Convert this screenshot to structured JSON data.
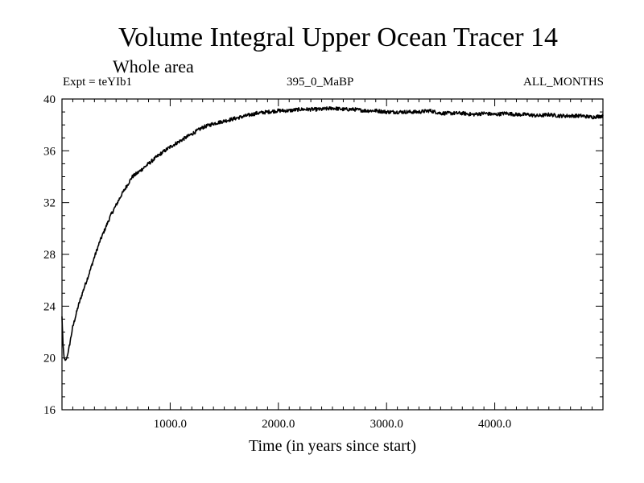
{
  "chart_data": {
    "type": "line",
    "title": "Volume Integral Upper Ocean Tracer 14",
    "subtitle": "Whole area",
    "experiment": "Expt = teYIb1",
    "period": "395_0_MaBP",
    "months": "ALL_MONTHS",
    "xlabel": "Time (in years since start)",
    "ylabel": "",
    "xlim": [
      0,
      5000
    ],
    "ylim": [
      16,
      40
    ],
    "x_ticks": [
      1000,
      2000,
      3000,
      4000
    ],
    "x_tick_labels": [
      "1000.0",
      "2000.0",
      "3000.0",
      "4000.0"
    ],
    "y_ticks": [
      16,
      20,
      24,
      28,
      32,
      36,
      40
    ],
    "y_tick_labels": [
      "16",
      "20",
      "24",
      "28",
      "32",
      "36",
      "40"
    ],
    "grid": false,
    "series": [
      {
        "name": "Tracer 14",
        "x": [
          0,
          10,
          20,
          30,
          40,
          60,
          80,
          100,
          150,
          200,
          250,
          300,
          350,
          400,
          450,
          500,
          550,
          600,
          650,
          700,
          800,
          900,
          1000,
          1100,
          1200,
          1300,
          1400,
          1500,
          1600,
          1700,
          1800,
          1900,
          2000,
          2100,
          2200,
          2300,
          2400,
          2500,
          2600,
          2700,
          2800,
          2900,
          3000,
          3100,
          3200,
          3300,
          3400,
          3500,
          3600,
          3700,
          3800,
          3900,
          4000,
          4100,
          4200,
          4300,
          4400,
          4500,
          4600,
          4700,
          4800,
          4900,
          5000
        ],
        "values": [
          23.2,
          21.0,
          20.0,
          19.8,
          19.9,
          20.5,
          21.5,
          22.4,
          24.0,
          25.3,
          26.5,
          27.8,
          29.0,
          30.0,
          31.0,
          31.8,
          32.6,
          33.3,
          34.0,
          34.3,
          35.0,
          35.7,
          36.3,
          36.8,
          37.3,
          37.8,
          38.1,
          38.3,
          38.5,
          38.7,
          38.9,
          39.0,
          39.1,
          39.1,
          39.2,
          39.2,
          39.2,
          39.3,
          39.2,
          39.2,
          39.1,
          39.1,
          39.0,
          39.0,
          39.0,
          39.0,
          39.1,
          38.9,
          38.9,
          38.9,
          38.8,
          38.9,
          38.8,
          38.9,
          38.8,
          38.8,
          38.7,
          38.8,
          38.7,
          38.7,
          38.7,
          38.6,
          38.7
        ]
      }
    ]
  }
}
